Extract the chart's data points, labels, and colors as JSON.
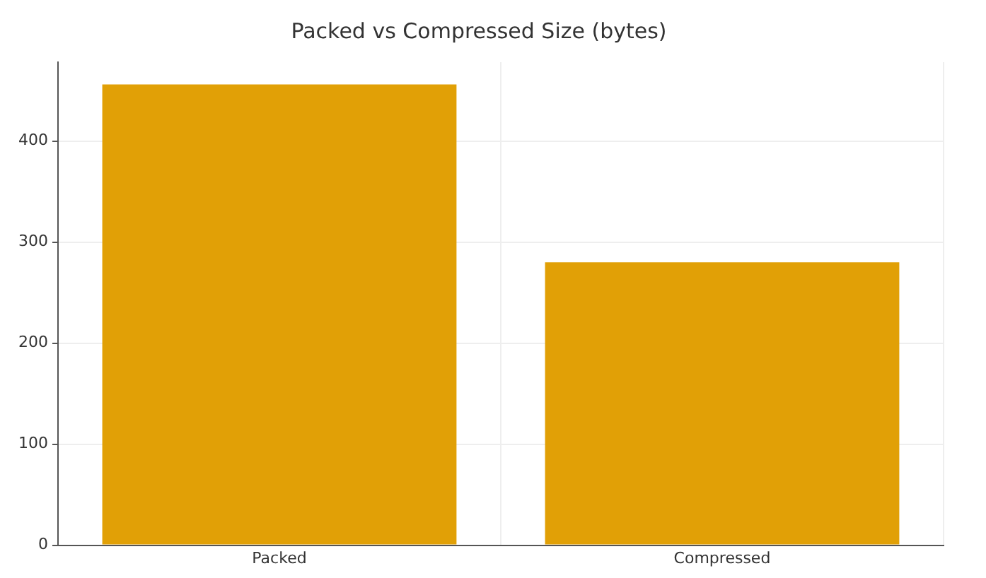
{
  "chart_data": {
    "type": "bar",
    "title": "Packed vs Compressed Size (bytes)",
    "categories": [
      "Packed",
      "Compressed"
    ],
    "values": [
      456,
      280
    ],
    "color": "#e1a006",
    "ylim": [
      0,
      478
    ],
    "yticks": [
      0,
      100,
      200,
      300,
      400
    ],
    "grid": true
  }
}
